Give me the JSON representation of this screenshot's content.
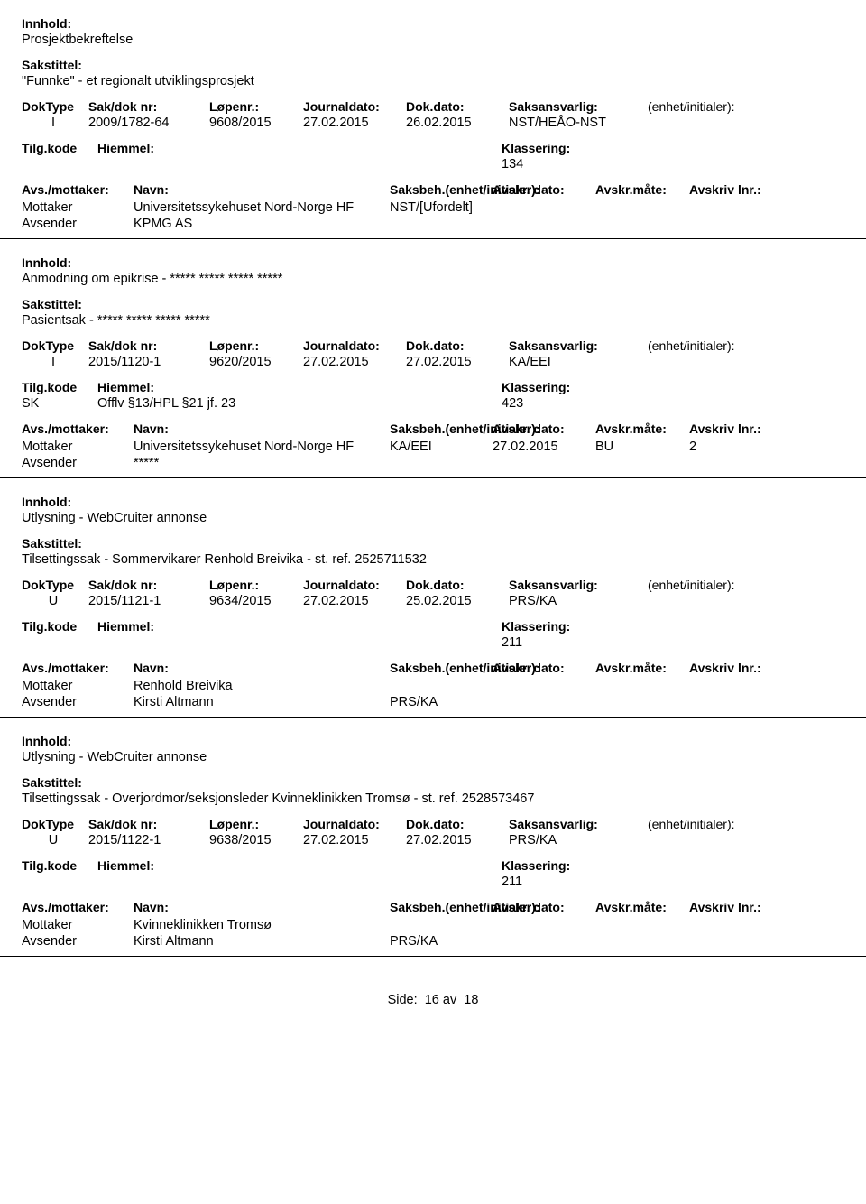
{
  "labels": {
    "innhold": "Innhold:",
    "sakstittel": "Sakstittel:",
    "doktype": "DokType",
    "sakdok": "Sak/dok nr:",
    "lopenr": "Løpenr.:",
    "journaldato": "Journaldato:",
    "dokdato": "Dok.dato:",
    "saksansvarlig": "Saksansvarlig:",
    "enhet": "(enhet/initialer):",
    "tilgkode": "Tilg.kode",
    "hiemmel": "Hiemmel:",
    "klassering": "Klassering:",
    "avsmottaker": "Avs./mottaker:",
    "navn": "Navn:",
    "saksbeh": "Saksbeh.(enhet/initialer):",
    "avskrdato": "Avskr. dato:",
    "avskrmate": "Avskr.måte:",
    "avskrivlnr": "Avskriv lnr.:",
    "mottaker": "Mottaker",
    "avsender": "Avsender",
    "side": "Side:",
    "av": "av"
  },
  "records": [
    {
      "innhold": "Prosjektbekreftelse",
      "sakstittel": "\"Funnke\" - et regionalt utviklingsprosjekt",
      "doktype": "I",
      "sakdok": "2009/1782-64",
      "lopenr": "9608/2015",
      "journaldato": "27.02.2015",
      "dokdato": "26.02.2015",
      "saksansvarlig": "NST/HEÅO-NST",
      "enhet": "",
      "tilgkode": "",
      "hiemmel": "",
      "klassering": "134",
      "mottaker_navn": "Universitetssykehuset Nord-Norge HF",
      "mottaker_saksbeh": "NST/[Ufordelt]",
      "mottaker_avskrdato": "",
      "mottaker_avskrmate": "",
      "mottaker_avskrivlnr": "",
      "avsender_navn": "KPMG AS",
      "avsender_saksbeh": ""
    },
    {
      "innhold": "Anmodning om epikrise - ***** ***** ***** *****",
      "sakstittel": "Pasientsak - ***** ***** ***** *****",
      "doktype": "I",
      "sakdok": "2015/1120-1",
      "lopenr": "9620/2015",
      "journaldato": "27.02.2015",
      "dokdato": "27.02.2015",
      "saksansvarlig": "KA/EEI",
      "enhet": "",
      "tilgkode": "SK",
      "hiemmel": "Offlv §13/HPL §21 jf. 23",
      "klassering": "423",
      "mottaker_navn": "Universitetssykehuset Nord-Norge HF",
      "mottaker_saksbeh": "KA/EEI",
      "mottaker_avskrdato": "27.02.2015",
      "mottaker_avskrmate": "BU",
      "mottaker_avskrivlnr": "2",
      "avsender_navn": "*****",
      "avsender_saksbeh": ""
    },
    {
      "innhold": "Utlysning - WebCruiter annonse",
      "sakstittel": "Tilsettingssak - Sommervikarer Renhold Breivika - st. ref. 2525711532",
      "doktype": "U",
      "sakdok": "2015/1121-1",
      "lopenr": "9634/2015",
      "journaldato": "27.02.2015",
      "dokdato": "25.02.2015",
      "saksansvarlig": "PRS/KA",
      "enhet": "",
      "tilgkode": "",
      "hiemmel": "",
      "klassering": "211",
      "mottaker_navn": "Renhold Breivika",
      "mottaker_saksbeh": "",
      "mottaker_avskrdato": "",
      "mottaker_avskrmate": "",
      "mottaker_avskrivlnr": "",
      "avsender_navn": "Kirsti Altmann",
      "avsender_saksbeh": "PRS/KA"
    },
    {
      "innhold": "Utlysning - WebCruiter annonse",
      "sakstittel": "Tilsettingssak - Overjordmor/seksjonsleder Kvinneklinikken Tromsø - st. ref. 2528573467",
      "doktype": "U",
      "sakdok": "2015/1122-1",
      "lopenr": "9638/2015",
      "journaldato": "27.02.2015",
      "dokdato": "27.02.2015",
      "saksansvarlig": "PRS/KA",
      "enhet": "",
      "tilgkode": "",
      "hiemmel": "",
      "klassering": "211",
      "mottaker_navn": "Kvinneklinikken Tromsø",
      "mottaker_saksbeh": "",
      "mottaker_avskrdato": "",
      "mottaker_avskrmate": "",
      "mottaker_avskrivlnr": "",
      "avsender_navn": "Kirsti Altmann",
      "avsender_saksbeh": "PRS/KA"
    }
  ],
  "page": {
    "current": "16",
    "total": "18"
  }
}
